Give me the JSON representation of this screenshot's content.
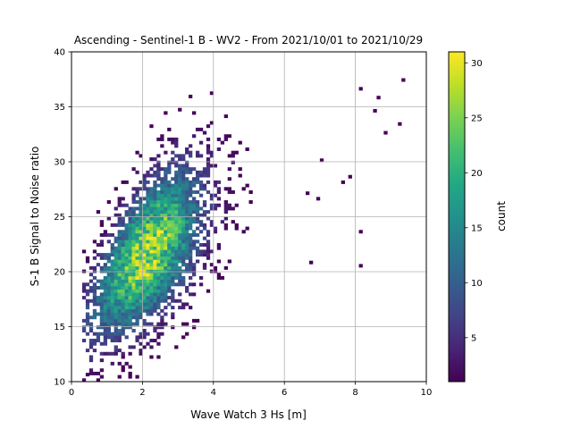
{
  "chart_data": {
    "type": "heatmap",
    "title": "Ascending - Sentinel-1 B - WV2 - From 2021/10/01 to 2021/10/29",
    "xlabel": "Wave Watch 3 Hs [m]",
    "ylabel": "S-1 B Signal to Noise ratio",
    "xlim": [
      0,
      10
    ],
    "ylim": [
      10,
      40
    ],
    "xticks": [
      "0",
      "2",
      "4",
      "6",
      "8",
      "10"
    ],
    "yticks": [
      "10",
      "15",
      "20",
      "25",
      "30",
      "35",
      "40"
    ],
    "grid": true,
    "colormap": "viridis",
    "colorbar": {
      "label": "count",
      "range": [
        1,
        31
      ],
      "ticks": [
        "5",
        "10",
        "15",
        "20",
        "25",
        "30"
      ]
    },
    "density_core": {
      "hs": 2.1,
      "snr": 21.5,
      "max_count": 31
    },
    "sparse_outliers": [
      {
        "hs": 9.3,
        "snr": 37.3
      },
      {
        "hs": 8.6,
        "snr": 35.7
      },
      {
        "hs": 8.5,
        "snr": 34.5
      },
      {
        "hs": 9.2,
        "snr": 33.3
      },
      {
        "hs": 8.8,
        "snr": 32.5
      },
      {
        "hs": 8.1,
        "snr": 36.5
      },
      {
        "hs": 8.1,
        "snr": 23.5
      },
      {
        "hs": 8.1,
        "snr": 20.4
      },
      {
        "hs": 6.7,
        "snr": 20.7
      },
      {
        "hs": 7.8,
        "snr": 28.5
      },
      {
        "hs": 7.6,
        "snr": 28.0
      },
      {
        "hs": 0.4,
        "snr": 10.5
      },
      {
        "hs": 7.0,
        "snr": 30.0
      },
      {
        "hs": 6.9,
        "snr": 26.5
      },
      {
        "hs": 6.6,
        "snr": 27.0
      }
    ]
  }
}
